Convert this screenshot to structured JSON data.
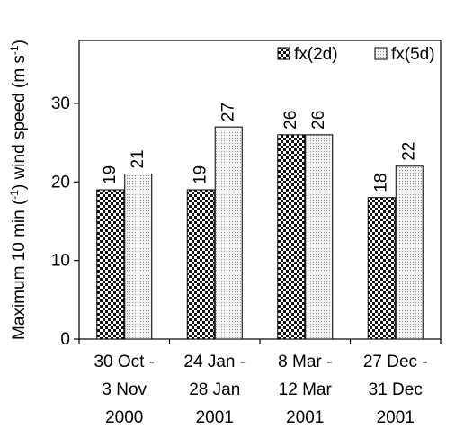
{
  "chart_data": {
    "type": "bar",
    "ylabel": "Maximum 10 min (-1) wind speed (m s-1)",
    "ylabel_parts": {
      "before": "Maximum 10 min (",
      "sup1": "-1",
      "middle": ") wind speed (m s",
      "sup2": "-1",
      "after": ")"
    },
    "xlabel": "",
    "ylim": [
      0,
      38
    ],
    "yticks": [
      0,
      10,
      20,
      30
    ],
    "grid": false,
    "legend_position": "top-right",
    "categories": [
      [
        "30 Oct -",
        "3 Nov",
        "2000"
      ],
      [
        "24 Jan -",
        "28 Jan",
        "2001"
      ],
      [
        "8 Mar -",
        "12 Mar",
        "2001"
      ],
      [
        "27 Dec -",
        "31 Dec",
        "2001"
      ]
    ],
    "series": [
      {
        "name": "fx(2d)",
        "values": [
          19,
          19,
          26,
          18
        ],
        "pattern": "dense-checker"
      },
      {
        "name": "fx(5d)",
        "values": [
          21,
          27,
          26,
          22
        ],
        "pattern": "light-dots"
      }
    ],
    "data_labels": true
  }
}
